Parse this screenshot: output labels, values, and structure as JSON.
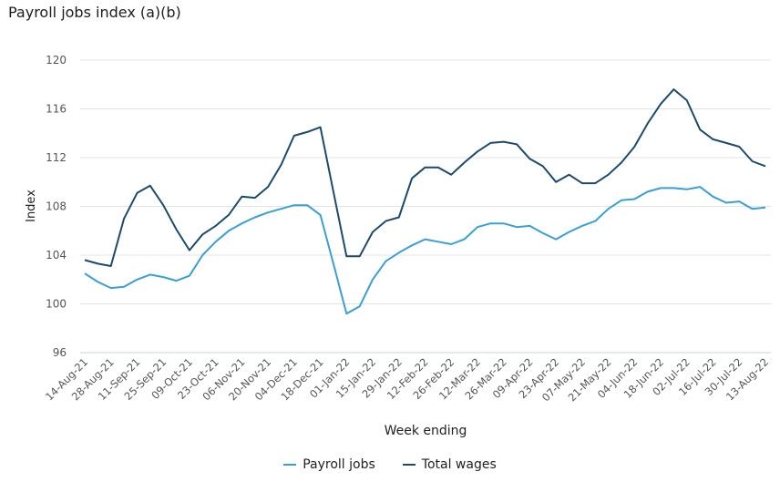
{
  "title": "Payroll jobs index (a)(b)",
  "legend": [
    {
      "label": "Payroll jobs",
      "color": "#3a9fd5"
    },
    {
      "label": "Total wages",
      "color": "#1d4a6c"
    }
  ],
  "chart_data": {
    "type": "line",
    "title": "Payroll jobs index (a)(b)",
    "xlabel": "Week ending",
    "ylabel": "Index",
    "ylim": [
      96,
      120
    ],
    "yticks": [
      96,
      100,
      104,
      108,
      112,
      116,
      120
    ],
    "grid": true,
    "legend_position": "bottom",
    "x_tick_labels": [
      "14-Aug-21",
      "28-Aug-21",
      "11-Sep-21",
      "25-Sep-21",
      "09-Oct-21",
      "23-Oct-21",
      "06-Nov-21",
      "20-Nov-21",
      "04-Dec-21",
      "18-Dec-21",
      "01-Jan-22",
      "15-Jan-22",
      "29-Jan-22",
      "12-Feb-22",
      "26-Feb-22",
      "12-Mar-22",
      "26-Mar-22",
      "09-Apr-22",
      "23-Apr-22",
      "07-May-22",
      "21-May-22",
      "04-Jun-22",
      "18-Jun-22",
      "02-Jul-22",
      "16-Jul-22",
      "30-Jul-22",
      "13-Aug-22"
    ],
    "x": [
      "14-Aug-21",
      "21-Aug-21",
      "28-Aug-21",
      "04-Sep-21",
      "11-Sep-21",
      "18-Sep-21",
      "25-Sep-21",
      "02-Oct-21",
      "09-Oct-21",
      "16-Oct-21",
      "23-Oct-21",
      "30-Oct-21",
      "06-Nov-21",
      "13-Nov-21",
      "20-Nov-21",
      "27-Nov-21",
      "04-Dec-21",
      "11-Dec-21",
      "18-Dec-21",
      "25-Dec-21",
      "01-Jan-22",
      "08-Jan-22",
      "15-Jan-22",
      "22-Jan-22",
      "29-Jan-22",
      "05-Feb-22",
      "12-Feb-22",
      "19-Feb-22",
      "26-Feb-22",
      "05-Mar-22",
      "12-Mar-22",
      "19-Mar-22",
      "26-Mar-22",
      "02-Apr-22",
      "09-Apr-22",
      "16-Apr-22",
      "23-Apr-22",
      "30-Apr-22",
      "07-May-22",
      "14-May-22",
      "21-May-22",
      "28-May-22",
      "04-Jun-22",
      "11-Jun-22",
      "18-Jun-22",
      "25-Jun-22",
      "02-Jul-22",
      "09-Jul-22",
      "16-Jul-22",
      "23-Jul-22",
      "30-Jul-22",
      "06-Aug-22",
      "13-Aug-22"
    ],
    "series": [
      {
        "name": "Payroll jobs",
        "color": "#3a9fd5",
        "values": [
          102.5,
          101.8,
          101.3,
          101.4,
          102.0,
          102.4,
          102.2,
          101.9,
          102.3,
          104.0,
          105.1,
          106.0,
          106.6,
          107.1,
          107.5,
          107.8,
          108.1,
          108.1,
          107.3,
          103.3,
          99.2,
          99.8,
          102.0,
          103.5,
          104.2,
          104.8,
          105.3,
          105.1,
          104.9,
          105.3,
          106.3,
          106.6,
          106.6,
          106.3,
          106.4,
          105.8,
          105.3,
          105.9,
          106.4,
          106.8,
          107.8,
          108.5,
          108.6,
          109.2,
          109.5,
          109.5,
          109.4,
          109.6,
          108.8,
          108.3,
          108.4,
          107.8,
          107.9
        ]
      },
      {
        "name": "Total wages",
        "color": "#1d4a6c",
        "values": [
          103.6,
          103.3,
          103.1,
          107.0,
          109.1,
          109.7,
          108.1,
          106.1,
          104.4,
          105.7,
          106.4,
          107.3,
          108.8,
          108.7,
          109.6,
          111.4,
          113.8,
          114.1,
          114.5,
          109.2,
          103.9,
          103.9,
          105.9,
          106.8,
          107.1,
          110.3,
          111.2,
          111.2,
          110.6,
          111.6,
          112.5,
          113.2,
          113.3,
          113.1,
          111.9,
          111.3,
          110.0,
          110.6,
          109.9,
          109.9,
          110.6,
          111.6,
          112.9,
          114.8,
          116.4,
          117.6,
          116.7,
          114.3,
          113.5,
          113.2,
          112.9,
          111.7,
          111.3
        ]
      }
    ]
  }
}
